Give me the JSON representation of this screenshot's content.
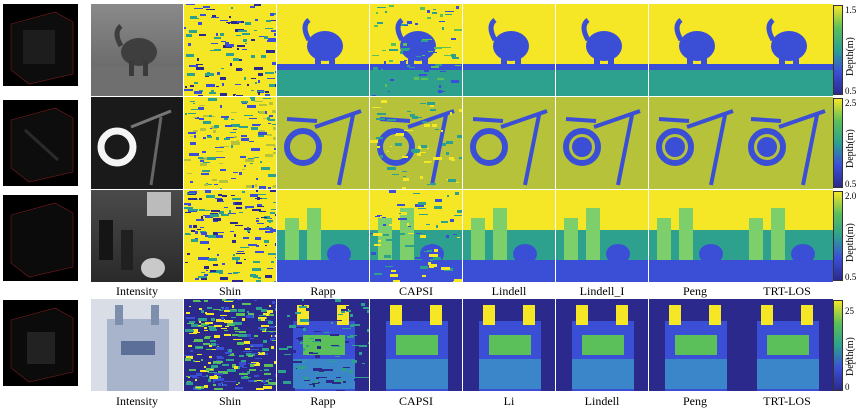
{
  "row_labels_top": [
    "Intensity",
    "Shin",
    "Rapp",
    "CAPSI",
    "Lindell",
    "Lindell_I",
    "Peng",
    "TRT-LOS"
  ],
  "row_labels_bottom": [
    "Intensity",
    "Shin",
    "Rapp",
    "CAPSI",
    "Li",
    "Lindell",
    "Peng",
    "TRT-LOS"
  ],
  "colorbars": [
    {
      "label": "Depth(m)",
      "max": "1.5",
      "min": "0.5"
    },
    {
      "label": "Depth(m)",
      "max": "2.5",
      "min": "0.5"
    },
    {
      "label": "Depth(m)",
      "max": "2.0",
      "min": "0.5"
    },
    {
      "label": "Depth(m)",
      "max": "25",
      "mid": "5",
      "min": "0"
    }
  ],
  "colors": {
    "yellow": "#f5e626",
    "teal": "#2ea08e",
    "blue": "#3b4fd6",
    "navy": "#2b2a8c",
    "green": "#5bbf5a"
  }
}
